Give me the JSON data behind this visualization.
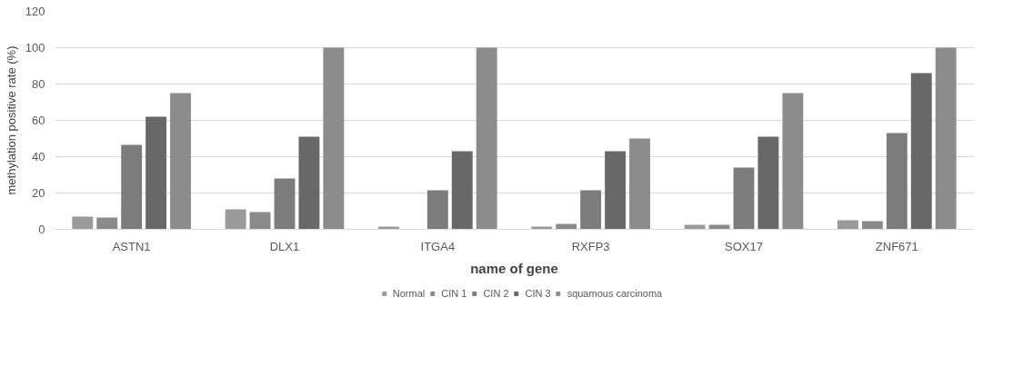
{
  "chart_data": {
    "type": "bar",
    "xlabel": "name of gene",
    "ylabel": "methylation positive rate (%)",
    "categories": [
      "ASTN1",
      "DLX1",
      "ITGA4",
      "RXFP3",
      "SOX17",
      "ZNF671"
    ],
    "series": [
      {
        "name": "Normal",
        "color": "#9a9a9a",
        "values": [
          7,
          11,
          1.5,
          1.5,
          2.5,
          5
        ]
      },
      {
        "name": "CIN 1",
        "color": "#8a8a8a",
        "values": [
          6.5,
          9.5,
          0,
          3,
          2.5,
          4.5
        ]
      },
      {
        "name": "CIN 2",
        "color": "#7c7c7c",
        "values": [
          46.5,
          28,
          21.5,
          21.5,
          34,
          53
        ]
      },
      {
        "name": "CIN 3",
        "color": "#686868",
        "values": [
          62,
          51,
          43,
          43,
          51,
          86
        ]
      },
      {
        "name": "squamous carcinoma",
        "color": "#8c8c8c",
        "values": [
          75,
          100,
          100,
          50,
          75,
          100
        ]
      }
    ],
    "ylim": [
      0,
      120
    ],
    "yticks": [
      0,
      20,
      40,
      60,
      80,
      100,
      120
    ],
    "grid": "y",
    "legend": "bottom"
  }
}
